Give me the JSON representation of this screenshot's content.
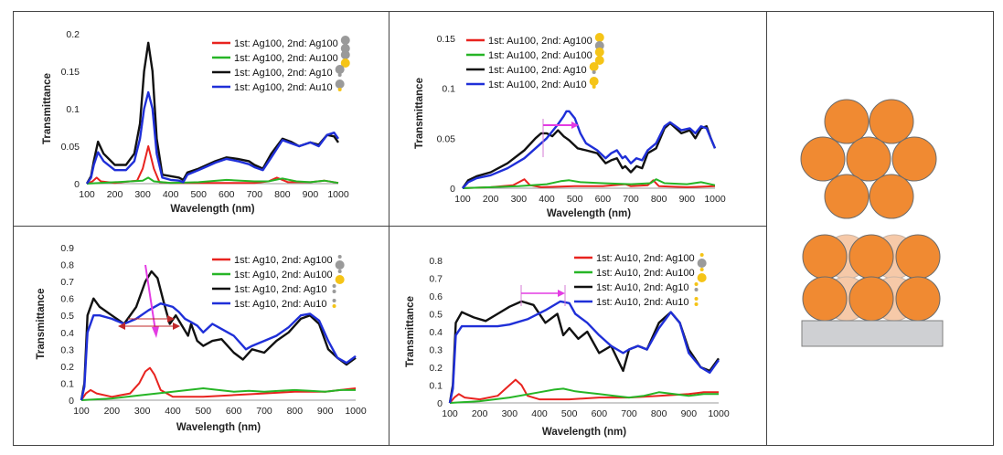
{
  "chart_data": [
    {
      "type": "line",
      "xlabel": "Wavelength (nm)",
      "ylabel": "Transmittance",
      "xlim": [
        100,
        1000
      ],
      "ylim": [
        0,
        0.2
      ],
      "xticks": [
        "100",
        "200",
        "300",
        "400",
        "500",
        "600",
        "700",
        "800",
        "900",
        "1000"
      ],
      "yticks": [
        "0",
        "0.05",
        "0.1",
        "0.15",
        "0.2"
      ],
      "yvalues": [
        0,
        0.05,
        0.1,
        0.15,
        0.2
      ],
      "series": [
        {
          "name": "1st: Ag100, 2nd: Ag100",
          "color": "#e8231f",
          "icon": "Ag-Ag",
          "x": [
            100,
            120,
            135,
            150,
            200,
            280,
            300,
            320,
            340,
            360,
            400,
            500,
            700,
            750,
            780,
            820,
            900,
            950,
            1000
          ],
          "y": [
            0,
            0.003,
            0.008,
            0.003,
            0.001,
            0.004,
            0.02,
            0.05,
            0.02,
            0.002,
            0.001,
            0.001,
            0.001,
            0.003,
            0.008,
            0.002,
            0.002,
            0.004,
            0.001
          ]
        },
        {
          "name": "1st: Ag100, 2nd: Au100",
          "color": "#26b526",
          "icon": "Ag-Au",
          "x": [
            100,
            200,
            300,
            320,
            340,
            400,
            500,
            600,
            650,
            700,
            750,
            800,
            850,
            900,
            950,
            1000
          ],
          "y": [
            0,
            0.002,
            0.004,
            0.008,
            0.003,
            0.001,
            0.002,
            0.005,
            0.004,
            0.003,
            0.003,
            0.007,
            0.003,
            0.002,
            0.004,
            0.001
          ]
        },
        {
          "name": "1st: Ag100, 2nd: Ag10",
          "color": "#111111",
          "icon": "Ag-Ag10",
          "x": [
            100,
            115,
            125,
            140,
            160,
            200,
            240,
            270,
            290,
            305,
            320,
            335,
            350,
            370,
            400,
            430,
            445,
            460,
            500,
            530,
            560,
            600,
            640,
            680,
            700,
            730,
            760,
            800,
            830,
            860,
            900,
            930,
            960,
            985,
            1000
          ],
          "y": [
            0,
            0.01,
            0.03,
            0.056,
            0.04,
            0.025,
            0.025,
            0.04,
            0.08,
            0.15,
            0.188,
            0.15,
            0.06,
            0.012,
            0.01,
            0.008,
            0.005,
            0.015,
            0.02,
            0.025,
            0.03,
            0.035,
            0.033,
            0.03,
            0.025,
            0.02,
            0.04,
            0.06,
            0.056,
            0.05,
            0.055,
            0.052,
            0.065,
            0.063,
            0.055
          ]
        },
        {
          "name": "1st: Ag100, 2nd: Au10",
          "color": "#1f2fd8",
          "icon": "Ag-Au10",
          "x": [
            100,
            115,
            125,
            140,
            160,
            200,
            240,
            270,
            290,
            305,
            320,
            335,
            350,
            370,
            400,
            430,
            445,
            460,
            500,
            530,
            560,
            600,
            640,
            680,
            700,
            730,
            760,
            800,
            830,
            860,
            900,
            930,
            960,
            985,
            1000
          ],
          "y": [
            0,
            0.008,
            0.025,
            0.042,
            0.03,
            0.018,
            0.018,
            0.03,
            0.06,
            0.1,
            0.122,
            0.1,
            0.04,
            0.008,
            0.005,
            0.004,
            0.002,
            0.012,
            0.018,
            0.023,
            0.028,
            0.033,
            0.03,
            0.026,
            0.022,
            0.018,
            0.035,
            0.058,
            0.054,
            0.05,
            0.055,
            0.05,
            0.065,
            0.068,
            0.06
          ]
        }
      ]
    },
    {
      "type": "line",
      "xlabel": "Wavelength (nm)",
      "ylabel": "Transmittance",
      "xlim": [
        100,
        1000
      ],
      "ylim": [
        0,
        0.15
      ],
      "xticks": [
        "100",
        "200",
        "300",
        "400",
        "500",
        "600",
        "700",
        "800",
        "900",
        "1000"
      ],
      "yticks": [
        "0",
        "0.05",
        "0.1",
        "0.15"
      ],
      "yvalues": [
        0,
        0.05,
        0.1,
        0.15
      ],
      "series": [
        {
          "name": "1st: Au100, 2nd: Ag100",
          "color": "#e8231f",
          "icon": "Au-Ag",
          "x": [
            100,
            200,
            280,
            320,
            340,
            380,
            500,
            600,
            680,
            700,
            760,
            780,
            800,
            900,
            1000
          ],
          "y": [
            0,
            0.001,
            0.003,
            0.009,
            0.003,
            0.001,
            0.002,
            0.002,
            0.004,
            0.002,
            0.003,
            0.008,
            0.002,
            0.001,
            0.002
          ]
        },
        {
          "name": "1st: Au100, 2nd: Au100",
          "color": "#26b526",
          "icon": "Au-Au",
          "x": [
            100,
            200,
            300,
            400,
            450,
            480,
            520,
            600,
            700,
            770,
            790,
            820,
            900,
            950,
            1000
          ],
          "y": [
            0,
            0.001,
            0.002,
            0.004,
            0.007,
            0.008,
            0.006,
            0.005,
            0.004,
            0.005,
            0.009,
            0.005,
            0.004,
            0.006,
            0.003
          ]
        },
        {
          "name": "1st: Au100, 2nd: Ag10",
          "color": "#111111",
          "icon": "Au-Ag10",
          "x": [
            100,
            120,
            150,
            200,
            260,
            320,
            360,
            380,
            400,
            420,
            440,
            460,
            470,
            480,
            510,
            540,
            580,
            610,
            630,
            650,
            670,
            680,
            700,
            720,
            740,
            760,
            790,
            820,
            840,
            860,
            880,
            910,
            930,
            950,
            970,
            985,
            1000
          ],
          "y": [
            0,
            0.008,
            0.012,
            0.016,
            0.025,
            0.038,
            0.05,
            0.055,
            0.055,
            0.052,
            0.058,
            0.052,
            0.05,
            0.048,
            0.04,
            0.038,
            0.035,
            0.025,
            0.028,
            0.03,
            0.02,
            0.022,
            0.016,
            0.022,
            0.02,
            0.035,
            0.04,
            0.06,
            0.065,
            0.06,
            0.055,
            0.058,
            0.05,
            0.06,
            0.062,
            0.05,
            0.04
          ]
        },
        {
          "name": "1st: Au100, 2nd: Au10",
          "color": "#1f2fd8",
          "icon": "Au-Au10",
          "x": [
            100,
            120,
            150,
            200,
            260,
            320,
            360,
            400,
            440,
            460,
            470,
            480,
            500,
            520,
            540,
            580,
            610,
            630,
            650,
            670,
            680,
            700,
            720,
            740,
            760,
            790,
            820,
            840,
            860,
            880,
            910,
            930,
            950,
            970,
            985,
            1000
          ],
          "y": [
            0,
            0.006,
            0.01,
            0.013,
            0.02,
            0.03,
            0.04,
            0.05,
            0.064,
            0.072,
            0.077,
            0.077,
            0.07,
            0.055,
            0.045,
            0.038,
            0.03,
            0.035,
            0.038,
            0.03,
            0.032,
            0.025,
            0.03,
            0.028,
            0.038,
            0.045,
            0.062,
            0.066,
            0.062,
            0.058,
            0.06,
            0.055,
            0.062,
            0.06,
            0.05,
            0.04
          ]
        }
      ],
      "annotations": [
        "arrow-pink-shift"
      ]
    },
    {
      "type": "line",
      "xlabel": "Wavelength (nm)",
      "ylabel": "Transmittance",
      "xlim": [
        100,
        1000
      ],
      "ylim": [
        0,
        0.9
      ],
      "xticks": [
        "100",
        "200",
        "300",
        "400",
        "500",
        "600",
        "700",
        "800",
        "900",
        "1000"
      ],
      "yticks": [
        "0",
        "0.1",
        "0.2",
        "0.3",
        "0.4",
        "0.5",
        "0.6",
        "0.7",
        "0.8",
        "0.9"
      ],
      "yvalues": [
        0,
        0.1,
        0.2,
        0.3,
        0.4,
        0.5,
        0.6,
        0.7,
        0.8,
        0.9
      ],
      "series": [
        {
          "name": "1st: Ag10, 2nd: Ag100",
          "color": "#e8231f",
          "icon": "Ag10-Ag",
          "x": [
            100,
            115,
            130,
            150,
            200,
            260,
            290,
            310,
            325,
            340,
            360,
            400,
            500,
            600,
            700,
            800,
            900,
            950,
            1000
          ],
          "y": [
            0,
            0.04,
            0.06,
            0.04,
            0.02,
            0.04,
            0.1,
            0.17,
            0.19,
            0.15,
            0.06,
            0.02,
            0.02,
            0.03,
            0.04,
            0.05,
            0.05,
            0.06,
            0.07
          ]
        },
        {
          "name": "1st: Ag10, 2nd: Au100",
          "color": "#26b526",
          "icon": "Ag10-Au",
          "x": [
            100,
            200,
            300,
            400,
            450,
            500,
            550,
            600,
            650,
            700,
            750,
            800,
            850,
            900,
            950,
            1000
          ],
          "y": [
            0,
            0.01,
            0.03,
            0.05,
            0.06,
            0.07,
            0.06,
            0.05,
            0.055,
            0.05,
            0.055,
            0.06,
            0.055,
            0.05,
            0.06,
            0.06
          ]
        },
        {
          "name": "1st: Ag10, 2nd: Ag10",
          "color": "#111111",
          "icon": "Ag10-Ag10",
          "x": [
            100,
            110,
            120,
            140,
            160,
            200,
            240,
            280,
            310,
            330,
            350,
            370,
            390,
            410,
            430,
            450,
            460,
            480,
            500,
            530,
            560,
            600,
            630,
            660,
            700,
            740,
            780,
            820,
            850,
            880,
            910,
            940,
            970,
            1000
          ],
          "y": [
            0,
            0.1,
            0.5,
            0.6,
            0.55,
            0.5,
            0.45,
            0.55,
            0.7,
            0.76,
            0.72,
            0.58,
            0.45,
            0.5,
            0.44,
            0.38,
            0.45,
            0.35,
            0.32,
            0.35,
            0.36,
            0.28,
            0.24,
            0.3,
            0.28,
            0.35,
            0.4,
            0.48,
            0.5,
            0.45,
            0.3,
            0.25,
            0.21,
            0.25
          ]
        },
        {
          "name": "1st: Ag10, 2nd: Au10",
          "color": "#1f2fd8",
          "icon": "Ag10-Au10",
          "x": [
            100,
            110,
            120,
            140,
            160,
            200,
            240,
            280,
            320,
            360,
            400,
            420,
            440,
            460,
            480,
            500,
            530,
            560,
            600,
            640,
            660,
            700,
            740,
            780,
            820,
            850,
            880,
            910,
            940,
            970,
            1000
          ],
          "y": [
            0,
            0.08,
            0.4,
            0.5,
            0.5,
            0.48,
            0.45,
            0.48,
            0.53,
            0.57,
            0.55,
            0.52,
            0.48,
            0.46,
            0.44,
            0.4,
            0.45,
            0.42,
            0.38,
            0.3,
            0.32,
            0.35,
            0.38,
            0.43,
            0.5,
            0.51,
            0.47,
            0.35,
            0.25,
            0.22,
            0.26
          ]
        }
      ],
      "annotations": [
        "arrow-pink-down",
        "arrow-red-double"
      ]
    },
    {
      "type": "line",
      "xlabel": "Wavelength (nm)",
      "ylabel": "Transmittance",
      "xlim": [
        100,
        1000
      ],
      "ylim": [
        0,
        0.8
      ],
      "xticks": [
        "100",
        "200",
        "300",
        "400",
        "500",
        "600",
        "700",
        "800",
        "900",
        "1000"
      ],
      "yticks": [
        "0",
        "0.1",
        "0.2",
        "0.3",
        "0.4",
        "0.5",
        "0.6",
        "0.7",
        "0.8"
      ],
      "yvalues": [
        0,
        0.1,
        0.2,
        0.3,
        0.4,
        0.5,
        0.6,
        0.7,
        0.8
      ],
      "series": [
        {
          "name": "1st: Au10, 2nd: Ag100",
          "color": "#e8231f",
          "icon": "Au10-Ag",
          "x": [
            100,
            115,
            130,
            150,
            200,
            260,
            300,
            320,
            340,
            360,
            400,
            500,
            600,
            700,
            800,
            900,
            950,
            1000
          ],
          "y": [
            0,
            0.03,
            0.05,
            0.03,
            0.02,
            0.04,
            0.1,
            0.13,
            0.1,
            0.04,
            0.02,
            0.02,
            0.03,
            0.03,
            0.04,
            0.05,
            0.06,
            0.06
          ]
        },
        {
          "name": "1st: Au10, 2nd: Au100",
          "color": "#26b526",
          "icon": "Au10-Au",
          "x": [
            100,
            200,
            300,
            400,
            450,
            480,
            520,
            600,
            650,
            700,
            750,
            800,
            850,
            900,
            950,
            1000
          ],
          "y": [
            0,
            0.01,
            0.03,
            0.06,
            0.075,
            0.08,
            0.065,
            0.05,
            0.04,
            0.03,
            0.04,
            0.06,
            0.05,
            0.04,
            0.05,
            0.05
          ]
        },
        {
          "name": "1st: Au10, 2nd: Ag10",
          "color": "#111111",
          "icon": "Au10-Ag10",
          "x": [
            100,
            110,
            120,
            140,
            180,
            220,
            260,
            300,
            340,
            380,
            420,
            460,
            480,
            500,
            530,
            560,
            600,
            640,
            680,
            700,
            730,
            760,
            800,
            840,
            870,
            900,
            940,
            970,
            1000
          ],
          "y": [
            0,
            0.1,
            0.45,
            0.51,
            0.48,
            0.46,
            0.5,
            0.54,
            0.57,
            0.55,
            0.45,
            0.5,
            0.38,
            0.42,
            0.36,
            0.4,
            0.28,
            0.32,
            0.18,
            0.3,
            0.32,
            0.3,
            0.45,
            0.51,
            0.45,
            0.3,
            0.2,
            0.18,
            0.25
          ]
        },
        {
          "name": "1st: Au10, 2nd: Au10",
          "color": "#1f2fd8",
          "icon": "Au10-Au10",
          "x": [
            100,
            110,
            120,
            140,
            200,
            260,
            300,
            360,
            420,
            470,
            500,
            520,
            560,
            600,
            640,
            680,
            700,
            730,
            760,
            800,
            840,
            870,
            900,
            940,
            970,
            1000
          ],
          "y": [
            0,
            0.08,
            0.38,
            0.43,
            0.43,
            0.43,
            0.44,
            0.47,
            0.52,
            0.57,
            0.56,
            0.5,
            0.45,
            0.38,
            0.32,
            0.28,
            0.3,
            0.32,
            0.3,
            0.42,
            0.51,
            0.45,
            0.28,
            0.2,
            0.17,
            0.24
          ]
        }
      ],
      "annotations": [
        "arrow-pink-shift"
      ]
    }
  ],
  "schematic": {
    "label": "nanoparticle-stacking-diagram",
    "particle_color": "#f08a32",
    "particle_faded_color": "#f6c9a8",
    "substrate_color": "#cfd0d3"
  }
}
